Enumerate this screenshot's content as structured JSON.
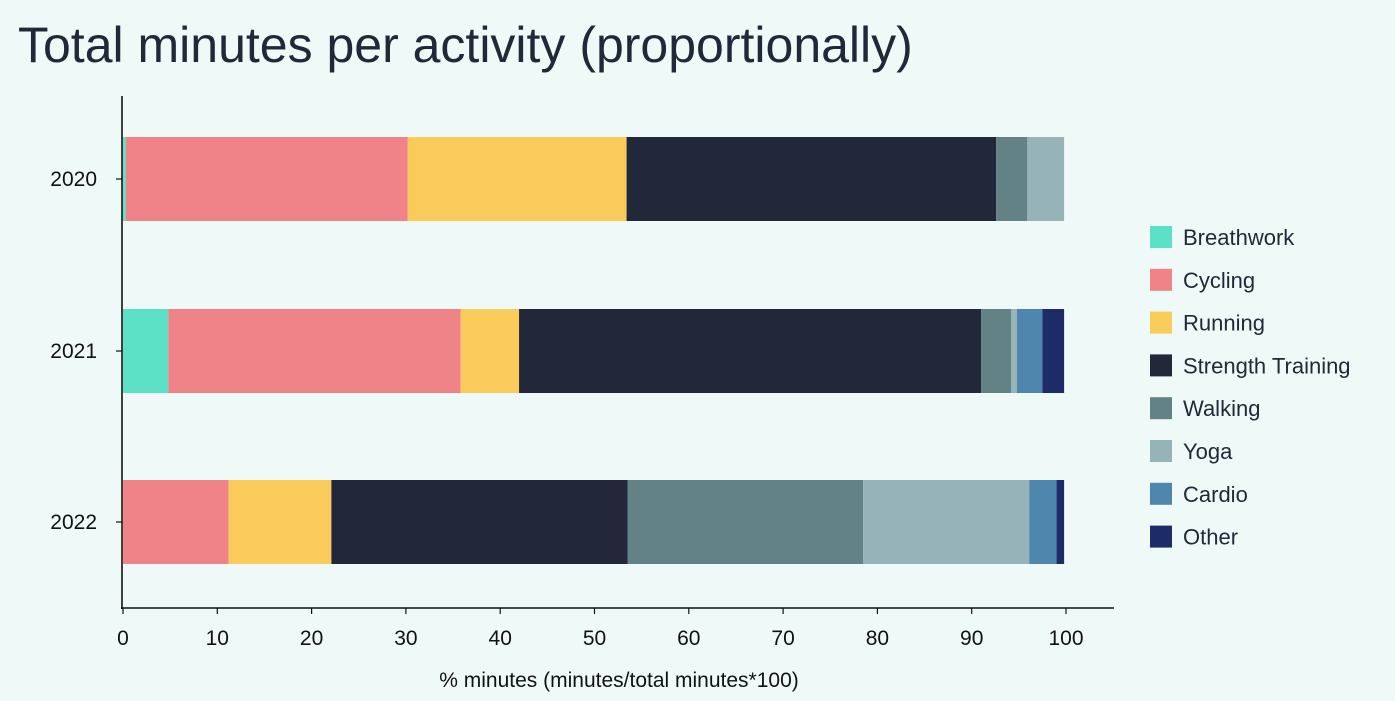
{
  "chart_data": {
    "type": "bar",
    "orientation": "horizontal",
    "stacked": true,
    "title": "Total minutes per activity (proportionally)",
    "xlabel": "% minutes (minutes/total minutes*100)",
    "ylabel": "",
    "xlim": [
      0,
      105
    ],
    "xticks": [
      0,
      10,
      20,
      30,
      40,
      50,
      60,
      70,
      80,
      90,
      100
    ],
    "grid": false,
    "legend_position": "right",
    "categories": [
      "2020",
      "2021",
      "2022"
    ],
    "series": [
      {
        "name": "Breathwork",
        "color": "#5ce1c6",
        "values": [
          0.3,
          4.8,
          0
        ]
      },
      {
        "name": "Cycling",
        "color": "#f08388",
        "values": [
          29.9,
          31.0,
          11.2
        ]
      },
      {
        "name": "Running",
        "color": "#f9cb5b",
        "values": [
          23.2,
          6.2,
          10.9
        ]
      },
      {
        "name": "Strength Training",
        "color": "#22283a",
        "values": [
          39.2,
          49.0,
          31.4
        ]
      },
      {
        "name": "Walking",
        "color": "#628285",
        "values": [
          3.3,
          3.2,
          25.0
        ]
      },
      {
        "name": "Yoga",
        "color": "#96b3b8",
        "values": [
          3.9,
          0.6,
          17.6
        ]
      },
      {
        "name": "Cardio",
        "color": "#4e86ae",
        "values": [
          0,
          2.7,
          2.9
        ]
      },
      {
        "name": "Other",
        "color": "#1d2c67",
        "values": [
          0,
          2.3,
          0.8
        ]
      }
    ]
  }
}
